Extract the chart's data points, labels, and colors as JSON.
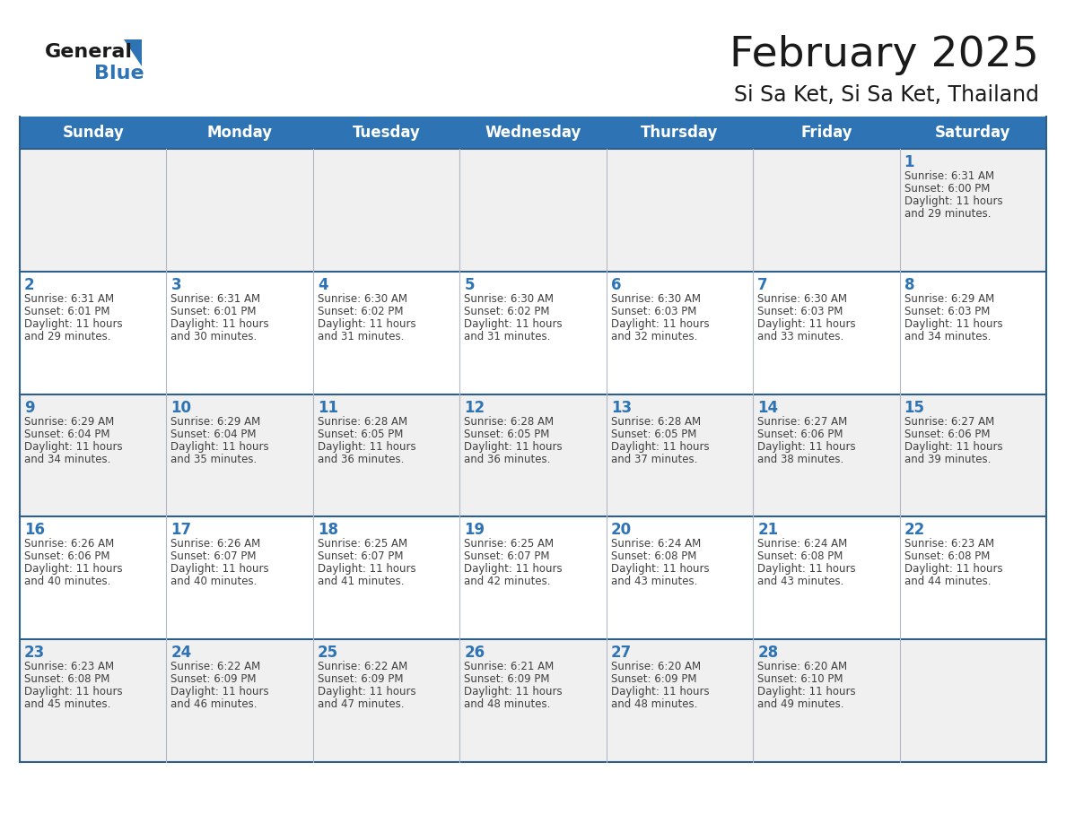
{
  "title": "February 2025",
  "subtitle": "Si Sa Ket, Si Sa Ket, Thailand",
  "days_of_week": [
    "Sunday",
    "Monday",
    "Tuesday",
    "Wednesday",
    "Thursday",
    "Friday",
    "Saturday"
  ],
  "header_bg": "#2E74B5",
  "header_text": "#FFFFFF",
  "row_bg_white": "#FFFFFF",
  "row_bg_gray": "#F0F0F0",
  "row_border_color": "#2E5F8A",
  "cell_divider_color": "#B0B8C8",
  "day_num_color": "#2E74B5",
  "info_text_color": "#404040",
  "title_color": "#1a1a1a",
  "logo_general_color": "#1a1a1a",
  "logo_blue_color": "#2E74B5",
  "calendar": [
    [
      null,
      null,
      null,
      null,
      null,
      null,
      {
        "day": 1,
        "sunrise": "6:31 AM",
        "sunset": "6:00 PM",
        "daylight": "11 hours and 29 minutes."
      }
    ],
    [
      {
        "day": 2,
        "sunrise": "6:31 AM",
        "sunset": "6:01 PM",
        "daylight": "11 hours and 29 minutes."
      },
      {
        "day": 3,
        "sunrise": "6:31 AM",
        "sunset": "6:01 PM",
        "daylight": "11 hours and 30 minutes."
      },
      {
        "day": 4,
        "sunrise": "6:30 AM",
        "sunset": "6:02 PM",
        "daylight": "11 hours and 31 minutes."
      },
      {
        "day": 5,
        "sunrise": "6:30 AM",
        "sunset": "6:02 PM",
        "daylight": "11 hours and 31 minutes."
      },
      {
        "day": 6,
        "sunrise": "6:30 AM",
        "sunset": "6:03 PM",
        "daylight": "11 hours and 32 minutes."
      },
      {
        "day": 7,
        "sunrise": "6:30 AM",
        "sunset": "6:03 PM",
        "daylight": "11 hours and 33 minutes."
      },
      {
        "day": 8,
        "sunrise": "6:29 AM",
        "sunset": "6:03 PM",
        "daylight": "11 hours and 34 minutes."
      }
    ],
    [
      {
        "day": 9,
        "sunrise": "6:29 AM",
        "sunset": "6:04 PM",
        "daylight": "11 hours and 34 minutes."
      },
      {
        "day": 10,
        "sunrise": "6:29 AM",
        "sunset": "6:04 PM",
        "daylight": "11 hours and 35 minutes."
      },
      {
        "day": 11,
        "sunrise": "6:28 AM",
        "sunset": "6:05 PM",
        "daylight": "11 hours and 36 minutes."
      },
      {
        "day": 12,
        "sunrise": "6:28 AM",
        "sunset": "6:05 PM",
        "daylight": "11 hours and 36 minutes."
      },
      {
        "day": 13,
        "sunrise": "6:28 AM",
        "sunset": "6:05 PM",
        "daylight": "11 hours and 37 minutes."
      },
      {
        "day": 14,
        "sunrise": "6:27 AM",
        "sunset": "6:06 PM",
        "daylight": "11 hours and 38 minutes."
      },
      {
        "day": 15,
        "sunrise": "6:27 AM",
        "sunset": "6:06 PM",
        "daylight": "11 hours and 39 minutes."
      }
    ],
    [
      {
        "day": 16,
        "sunrise": "6:26 AM",
        "sunset": "6:06 PM",
        "daylight": "11 hours and 40 minutes."
      },
      {
        "day": 17,
        "sunrise": "6:26 AM",
        "sunset": "6:07 PM",
        "daylight": "11 hours and 40 minutes."
      },
      {
        "day": 18,
        "sunrise": "6:25 AM",
        "sunset": "6:07 PM",
        "daylight": "11 hours and 41 minutes."
      },
      {
        "day": 19,
        "sunrise": "6:25 AM",
        "sunset": "6:07 PM",
        "daylight": "11 hours and 42 minutes."
      },
      {
        "day": 20,
        "sunrise": "6:24 AM",
        "sunset": "6:08 PM",
        "daylight": "11 hours and 43 minutes."
      },
      {
        "day": 21,
        "sunrise": "6:24 AM",
        "sunset": "6:08 PM",
        "daylight": "11 hours and 43 minutes."
      },
      {
        "day": 22,
        "sunrise": "6:23 AM",
        "sunset": "6:08 PM",
        "daylight": "11 hours and 44 minutes."
      }
    ],
    [
      {
        "day": 23,
        "sunrise": "6:23 AM",
        "sunset": "6:08 PM",
        "daylight": "11 hours and 45 minutes."
      },
      {
        "day": 24,
        "sunrise": "6:22 AM",
        "sunset": "6:09 PM",
        "daylight": "11 hours and 46 minutes."
      },
      {
        "day": 25,
        "sunrise": "6:22 AM",
        "sunset": "6:09 PM",
        "daylight": "11 hours and 47 minutes."
      },
      {
        "day": 26,
        "sunrise": "6:21 AM",
        "sunset": "6:09 PM",
        "daylight": "11 hours and 48 minutes."
      },
      {
        "day": 27,
        "sunrise": "6:20 AM",
        "sunset": "6:09 PM",
        "daylight": "11 hours and 48 minutes."
      },
      {
        "day": 28,
        "sunrise": "6:20 AM",
        "sunset": "6:10 PM",
        "daylight": "11 hours and 49 minutes."
      },
      null
    ]
  ]
}
